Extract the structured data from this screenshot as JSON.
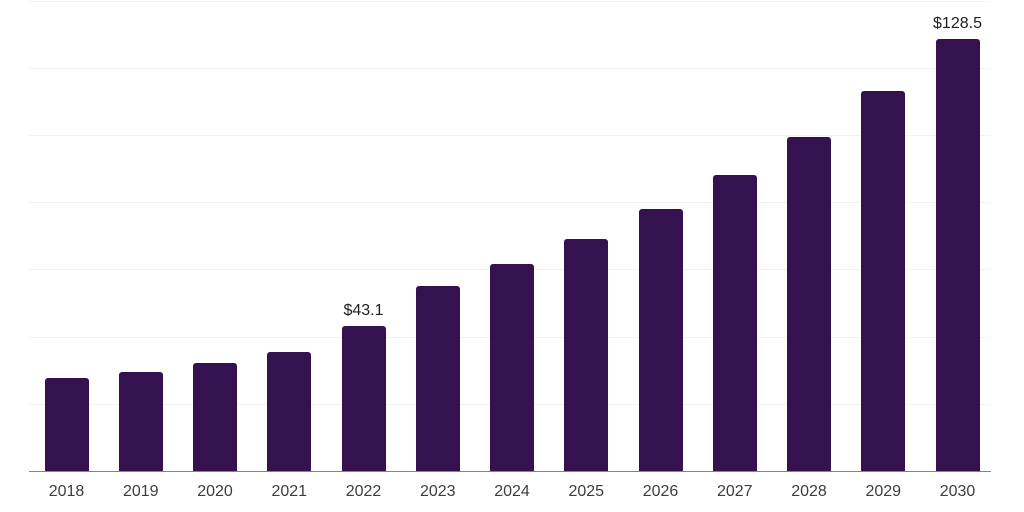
{
  "chart_data": {
    "type": "bar",
    "title": "",
    "xlabel": "",
    "ylabel": "",
    "categories": [
      "2018",
      "2019",
      "2020",
      "2021",
      "2022",
      "2023",
      "2024",
      "2025",
      "2026",
      "2027",
      "2028",
      "2029",
      "2030"
    ],
    "values": [
      27.7,
      29.6,
      32.2,
      35.4,
      43.1,
      55.1,
      61.6,
      69.0,
      77.9,
      88.2,
      99.5,
      113.1,
      128.5
    ],
    "data_labels": [
      "",
      "",
      "",
      "",
      "$43.1",
      "",
      "",
      "",
      "",
      "",
      "",
      "",
      "$128.5"
    ],
    "ylim": [
      0,
      140
    ],
    "gridline_step": 20,
    "grid": "horizontal",
    "y_axis_tick_labels_visible": false,
    "legend_position": "none",
    "colors": {
      "bar_fill": "#361150",
      "gridline": "#f2f2f2",
      "axis_line": "#848484",
      "data_label_text": "#1f1f1f",
      "tick_label_text": "#3d3d3d",
      "background": "#ffffff"
    }
  }
}
